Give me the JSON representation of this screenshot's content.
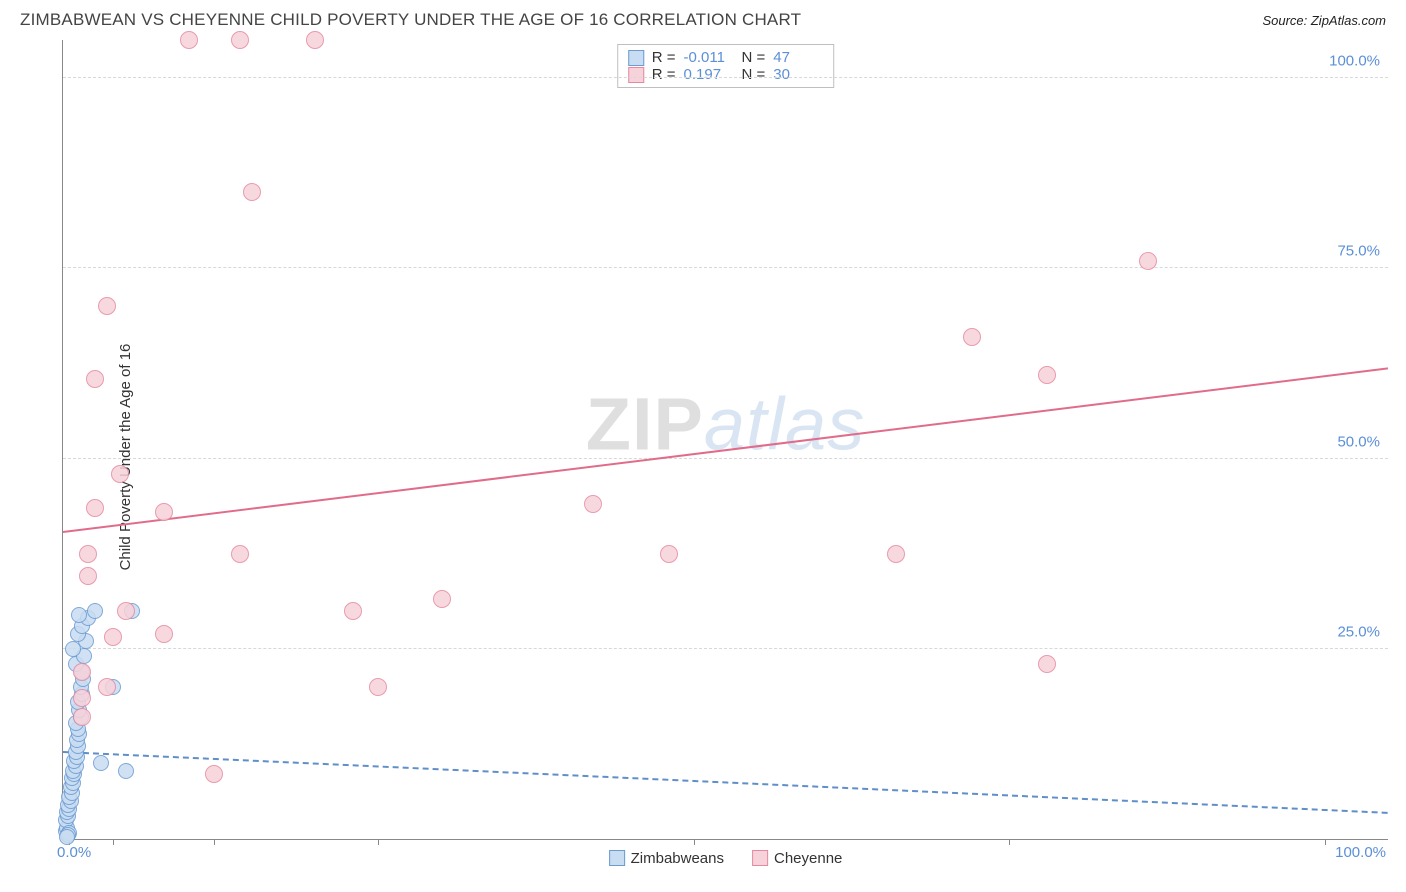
{
  "header": {
    "title": "ZIMBABWEAN VS CHEYENNE CHILD POVERTY UNDER THE AGE OF 16 CORRELATION CHART",
    "source": "Source: ZipAtlas.com"
  },
  "ylabel": "Child Poverty Under the Age of 16",
  "watermark": {
    "part1": "ZIP",
    "part2": "atlas"
  },
  "axes": {
    "xlim": [
      0,
      105
    ],
    "ylim": [
      0,
      105
    ],
    "x_origin_label": "0.0%",
    "x_max_label": "100.0%",
    "y_ticks": [
      {
        "v": 25,
        "label": "25.0%"
      },
      {
        "v": 50,
        "label": "50.0%"
      },
      {
        "v": 75,
        "label": "75.0%"
      },
      {
        "v": 100,
        "label": "100.0%"
      }
    ],
    "x_minor_ticks": [
      0.5,
      4,
      12,
      25,
      50,
      75,
      100
    ],
    "grid_color": "#d8d8d8",
    "axis_color": "#888888"
  },
  "series": [
    {
      "id": "zimbabweans",
      "label": "Zimbabweans",
      "fill": "#c8dcf2",
      "stroke": "#6b9bd1",
      "marker_radius": 8,
      "trend": {
        "y_at_x0": 11.5,
        "y_at_xmax": 3.5,
        "style": "dashed",
        "color": "#5f8fc9"
      },
      "stats": {
        "R": "-0.011",
        "N": "47"
      },
      "points": [
        [
          0.2,
          1.0
        ],
        [
          0.3,
          1.5
        ],
        [
          0.25,
          2.5
        ],
        [
          0.4,
          3.0
        ],
        [
          0.3,
          3.5
        ],
        [
          0.5,
          4.0
        ],
        [
          0.4,
          4.5
        ],
        [
          0.6,
          5.0
        ],
        [
          0.5,
          5.5
        ],
        [
          0.7,
          6.0
        ],
        [
          0.6,
          6.8
        ],
        [
          0.8,
          7.4
        ],
        [
          0.7,
          8.0
        ],
        [
          0.9,
          8.5
        ],
        [
          0.8,
          9.0
        ],
        [
          1.0,
          9.6
        ],
        [
          0.9,
          10.2
        ],
        [
          1.1,
          10.8
        ],
        [
          1.0,
          11.5
        ],
        [
          1.2,
          12.2
        ],
        [
          1.1,
          13.0
        ],
        [
          1.3,
          13.8
        ],
        [
          1.2,
          14.5
        ],
        [
          1.0,
          15.3
        ],
        [
          1.4,
          16.0
        ],
        [
          1.3,
          17.0
        ],
        [
          1.2,
          18.0
        ],
        [
          1.5,
          19.0
        ],
        [
          1.4,
          20.0
        ],
        [
          1.6,
          21.0
        ],
        [
          1.5,
          22.0
        ],
        [
          1.0,
          23.0
        ],
        [
          1.7,
          24.0
        ],
        [
          0.8,
          25.0
        ],
        [
          1.8,
          26.0
        ],
        [
          1.2,
          27.0
        ],
        [
          1.5,
          28.0
        ],
        [
          2.0,
          29.0
        ],
        [
          1.3,
          29.5
        ],
        [
          2.5,
          30.0
        ],
        [
          5.5,
          30.0
        ],
        [
          3.0,
          10.0
        ],
        [
          5.0,
          9.0
        ],
        [
          0.5,
          0.8
        ],
        [
          0.4,
          0.5
        ],
        [
          0.3,
          0.3
        ],
        [
          4.0,
          20.0
        ]
      ]
    },
    {
      "id": "cheyenne",
      "label": "Cheyenne",
      "fill": "#f7d2da",
      "stroke": "#e48aa0",
      "marker_radius": 9,
      "trend": {
        "y_at_x0": 40.5,
        "y_at_xmax": 62.0,
        "style": "solid",
        "color": "#e06c8a"
      },
      "stats": {
        "R": "0.197",
        "N": "30"
      },
      "points": [
        [
          10,
          105
        ],
        [
          14,
          105
        ],
        [
          20,
          105
        ],
        [
          15,
          85
        ],
        [
          3.5,
          70
        ],
        [
          2.5,
          60.5
        ],
        [
          4.5,
          48
        ],
        [
          2.5,
          43.5
        ],
        [
          8,
          43
        ],
        [
          2,
          37.5
        ],
        [
          14,
          37.5
        ],
        [
          2,
          34.5
        ],
        [
          5,
          30
        ],
        [
          8,
          27
        ],
        [
          4,
          26.5
        ],
        [
          1.5,
          22
        ],
        [
          1.5,
          18.5
        ],
        [
          3.5,
          20
        ],
        [
          1.5,
          16
        ],
        [
          12,
          8.5
        ],
        [
          23,
          30
        ],
        [
          25,
          20
        ],
        [
          30,
          31.5
        ],
        [
          42,
          44
        ],
        [
          48,
          37.5
        ],
        [
          66,
          37.5
        ],
        [
          72,
          66
        ],
        [
          78,
          61
        ],
        [
          78,
          23
        ],
        [
          86,
          76
        ]
      ]
    }
  ],
  "stats_box": {
    "rows": [
      {
        "swatch_fill": "#c8dcf2",
        "swatch_stroke": "#6b9bd1",
        "r_label": "R =",
        "r_value": "-0.011",
        "n_label": "N =",
        "n_value": "47"
      },
      {
        "swatch_fill": "#f7d2da",
        "swatch_stroke": "#e48aa0",
        "r_label": "R =",
        "r_value": "0.197",
        "n_label": "N =",
        "n_value": "30"
      }
    ]
  },
  "legend": [
    {
      "swatch_fill": "#c8dcf2",
      "swatch_stroke": "#6b9bd1",
      "label": "Zimbabweans"
    },
    {
      "swatch_fill": "#f7d2da",
      "swatch_stroke": "#e48aa0",
      "label": "Cheyenne"
    }
  ],
  "colors": {
    "tick_label": "#5b8fd6",
    "title": "#444444",
    "background": "#ffffff"
  }
}
